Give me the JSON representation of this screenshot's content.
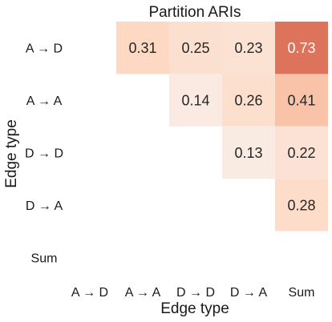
{
  "chart_data": {
    "type": "heatmap",
    "title": "Partition ARIs",
    "xlabel": "Edge type",
    "ylabel": "Edge type",
    "x_categories": [
      "A → D",
      "A → A",
      "D → D",
      "D → A",
      "Sum"
    ],
    "y_categories": [
      "A → D",
      "A → A",
      "D → D",
      "D → A",
      "Sum"
    ],
    "values": [
      [
        null,
        0.31,
        0.25,
        0.23,
        0.73
      ],
      [
        null,
        null,
        0.14,
        0.26,
        0.41
      ],
      [
        null,
        null,
        null,
        0.13,
        0.22
      ],
      [
        null,
        null,
        null,
        null,
        0.28
      ],
      [
        null,
        null,
        null,
        null,
        null
      ]
    ],
    "value_labels": [
      [
        "",
        "0.31",
        "0.25",
        "0.23",
        "0.73"
      ],
      [
        "",
        "",
        "0.14",
        "0.26",
        "0.41"
      ],
      [
        "",
        "",
        "",
        "0.13",
        "0.22"
      ],
      [
        "",
        "",
        "",
        "",
        "0.28"
      ],
      [
        "",
        "",
        "",
        "",
        ""
      ]
    ],
    "colormap": "RdBu_r (positive half)",
    "vlim": [
      -1,
      1
    ],
    "colorbar": false,
    "grid": false,
    "colors": {
      "low": "#f7f7f7",
      "mid": "#fddbc7",
      "midhigh": "#f4a582",
      "high": "#d6604d",
      "max": "#b2182b"
    }
  }
}
